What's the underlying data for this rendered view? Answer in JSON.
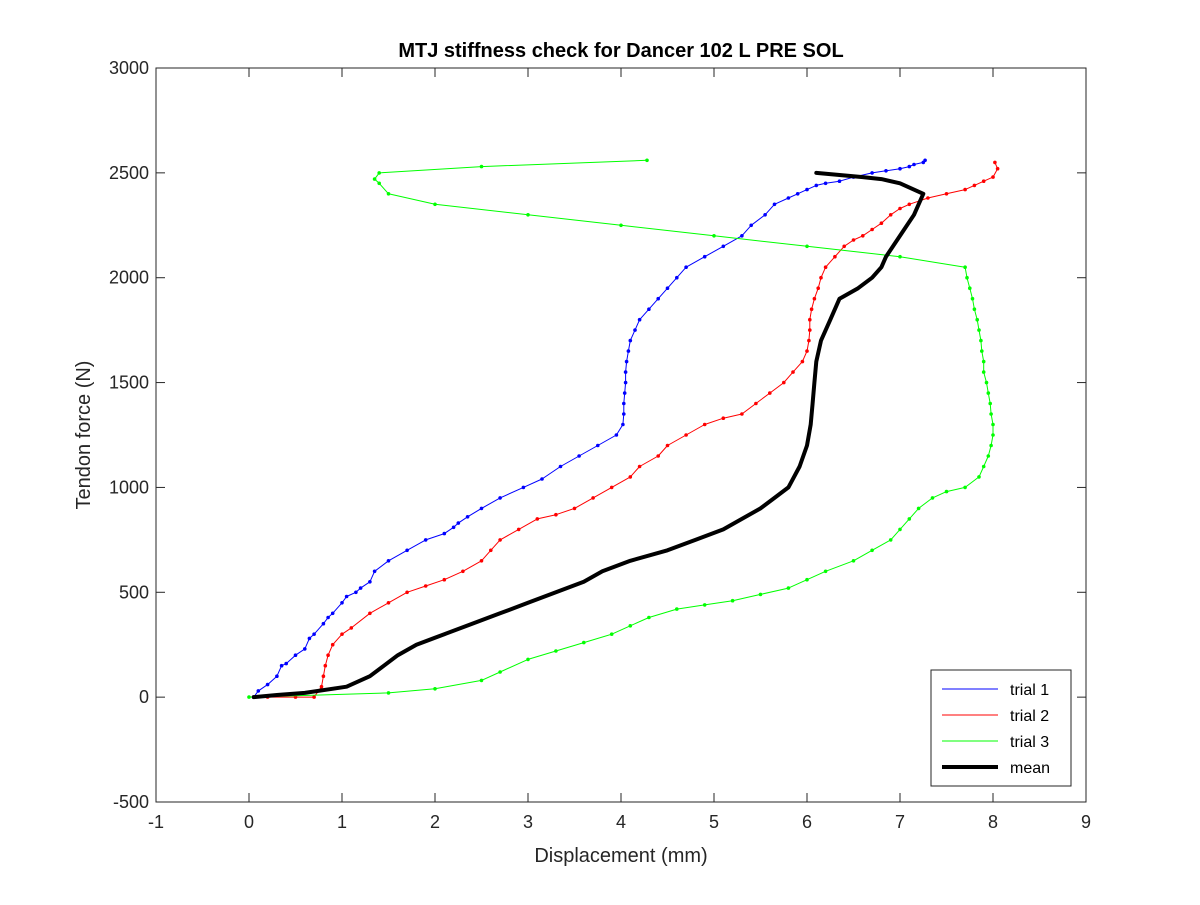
{
  "chart_data": {
    "type": "line",
    "title": "MTJ stiffness check for Dancer 102 L PRE SOL",
    "xlabel": "Displacement (mm)",
    "ylabel": "Tendon force (N)",
    "xlim": [
      -1,
      9
    ],
    "ylim": [
      -500,
      3000
    ],
    "xticks": [
      -1,
      0,
      1,
      2,
      3,
      4,
      5,
      6,
      7,
      8,
      9
    ],
    "yticks": [
      -500,
      0,
      500,
      1000,
      1500,
      2000,
      2500,
      3000
    ],
    "xtick_labels": [
      "-1",
      "0",
      "1",
      "2",
      "3",
      "4",
      "5",
      "6",
      "7",
      "8",
      "9"
    ],
    "ytick_labels": [
      "-500",
      "0",
      "500",
      "1000",
      "1500",
      "2000",
      "2500",
      "3000"
    ],
    "grid": false,
    "legend_position": "bottom-right",
    "series": [
      {
        "name": "trial 1",
        "color": "#0000ff",
        "line_width": "thin",
        "markers": true,
        "x": [
          0.05,
          0.1,
          0.2,
          0.3,
          0.35,
          0.4,
          0.5,
          0.6,
          0.65,
          0.7,
          0.8,
          0.85,
          0.9,
          1.0,
          1.05,
          1.15,
          1.2,
          1.3,
          1.35,
          1.5,
          1.7,
          1.9,
          2.1,
          2.2,
          2.25,
          2.35,
          2.5,
          2.7,
          2.95,
          3.15,
          3.35,
          3.55,
          3.75,
          3.95,
          4.02,
          4.03,
          4.03,
          4.04,
          4.05,
          4.05,
          4.06,
          4.08,
          4.1,
          4.15,
          4.2,
          4.3,
          4.4,
          4.5,
          4.6,
          4.7,
          4.9,
          5.1,
          5.3,
          5.4,
          5.55,
          5.65,
          5.8,
          5.9,
          6.0,
          6.1,
          6.2,
          6.35,
          6.5,
          6.7,
          6.85,
          7.0,
          7.1,
          7.15,
          7.25,
          7.27
        ],
        "y": [
          0,
          30,
          60,
          100,
          150,
          160,
          200,
          230,
          280,
          300,
          350,
          380,
          400,
          450,
          480,
          500,
          520,
          550,
          600,
          650,
          700,
          750,
          780,
          810,
          830,
          860,
          900,
          950,
          1000,
          1040,
          1100,
          1150,
          1200,
          1250,
          1300,
          1350,
          1400,
          1450,
          1500,
          1550,
          1600,
          1650,
          1700,
          1750,
          1800,
          1850,
          1900,
          1950,
          2000,
          2050,
          2100,
          2150,
          2200,
          2250,
          2300,
          2350,
          2380,
          2400,
          2420,
          2440,
          2450,
          2460,
          2480,
          2500,
          2510,
          2520,
          2530,
          2540,
          2550,
          2560
        ]
      },
      {
        "name": "trial 2",
        "color": "#ff0000",
        "line_width": "thin",
        "markers": true,
        "x": [
          0.2,
          0.5,
          0.7,
          0.78,
          0.8,
          0.82,
          0.85,
          0.9,
          1.0,
          1.1,
          1.3,
          1.5,
          1.7,
          1.9,
          2.1,
          2.3,
          2.5,
          2.6,
          2.7,
          2.9,
          3.1,
          3.3,
          3.5,
          3.7,
          3.9,
          4.1,
          4.2,
          4.4,
          4.5,
          4.7,
          4.9,
          5.1,
          5.3,
          5.45,
          5.6,
          5.75,
          5.85,
          5.95,
          6.0,
          6.02,
          6.03,
          6.03,
          6.05,
          6.08,
          6.12,
          6.15,
          6.2,
          6.3,
          6.4,
          6.5,
          6.6,
          6.7,
          6.8,
          6.9,
          7.0,
          7.1,
          7.3,
          7.5,
          7.7,
          7.8,
          7.9,
          8.0,
          8.05,
          8.02
        ],
        "y": [
          0,
          0,
          0,
          50,
          100,
          150,
          200,
          250,
          300,
          330,
          400,
          450,
          500,
          530,
          560,
          600,
          650,
          700,
          750,
          800,
          850,
          870,
          900,
          950,
          1000,
          1050,
          1100,
          1150,
          1200,
          1250,
          1300,
          1330,
          1350,
          1400,
          1450,
          1500,
          1550,
          1600,
          1650,
          1700,
          1750,
          1800,
          1850,
          1900,
          1950,
          2000,
          2050,
          2100,
          2150,
          2180,
          2200,
          2230,
          2260,
          2300,
          2330,
          2350,
          2380,
          2400,
          2420,
          2440,
          2460,
          2480,
          2520,
          2550
        ]
      },
      {
        "name": "trial 3",
        "color": "#00ff00",
        "line_width": "thin",
        "markers": true,
        "x": [
          0.0,
          1.5,
          2.0,
          2.5,
          2.7,
          3.0,
          3.3,
          3.6,
          3.9,
          4.1,
          4.3,
          4.6,
          4.9,
          5.2,
          5.5,
          5.8,
          6.0,
          6.2,
          6.5,
          6.7,
          6.9,
          7.0,
          7.1,
          7.2,
          7.35,
          7.5,
          7.7,
          7.85,
          7.9,
          7.95,
          7.98,
          8.0,
          8.0,
          7.98,
          7.97,
          7.95,
          7.93,
          7.9,
          7.9,
          7.88,
          7.87,
          7.85,
          7.83,
          7.8,
          7.78,
          7.75,
          7.72,
          7.7,
          7.0,
          6.0,
          5.0,
          4.0,
          3.0,
          2.0,
          1.5,
          1.4,
          1.35,
          1.4,
          2.5,
          4.28
        ],
        "y": [
          0,
          20,
          40,
          80,
          120,
          180,
          220,
          260,
          300,
          340,
          380,
          420,
          440,
          460,
          490,
          520,
          560,
          600,
          650,
          700,
          750,
          800,
          850,
          900,
          950,
          980,
          1000,
          1050,
          1100,
          1150,
          1200,
          1250,
          1300,
          1350,
          1400,
          1450,
          1500,
          1550,
          1600,
          1650,
          1700,
          1750,
          1800,
          1850,
          1900,
          1950,
          2000,
          2050,
          2100,
          2150,
          2200,
          2250,
          2300,
          2350,
          2400,
          2450,
          2470,
          2500,
          2530,
          2560
        ]
      },
      {
        "name": "mean",
        "color": "#000000",
        "line_width": "thick",
        "markers": false,
        "x": [
          0.05,
          0.3,
          0.6,
          1.05,
          1.3,
          1.45,
          1.6,
          1.8,
          2.1,
          2.4,
          2.7,
          3.0,
          3.3,
          3.6,
          3.8,
          4.1,
          4.5,
          4.8,
          5.1,
          5.3,
          5.5,
          5.65,
          5.8,
          5.92,
          6.0,
          6.04,
          6.06,
          6.08,
          6.1,
          6.15,
          6.25,
          6.35,
          6.55,
          6.7,
          6.8,
          6.85,
          7.0,
          7.15,
          7.25,
          7.0,
          6.8,
          6.6,
          6.1
        ],
        "y": [
          0,
          10,
          20,
          50,
          100,
          150,
          200,
          250,
          300,
          350,
          400,
          450,
          500,
          550,
          600,
          650,
          700,
          750,
          800,
          850,
          900,
          950,
          1000,
          1100,
          1200,
          1300,
          1400,
          1500,
          1600,
          1700,
          1800,
          1900,
          1950,
          2000,
          2050,
          2100,
          2200,
          2300,
          2400,
          2450,
          2470,
          2480,
          2500
        ]
      }
    ]
  }
}
